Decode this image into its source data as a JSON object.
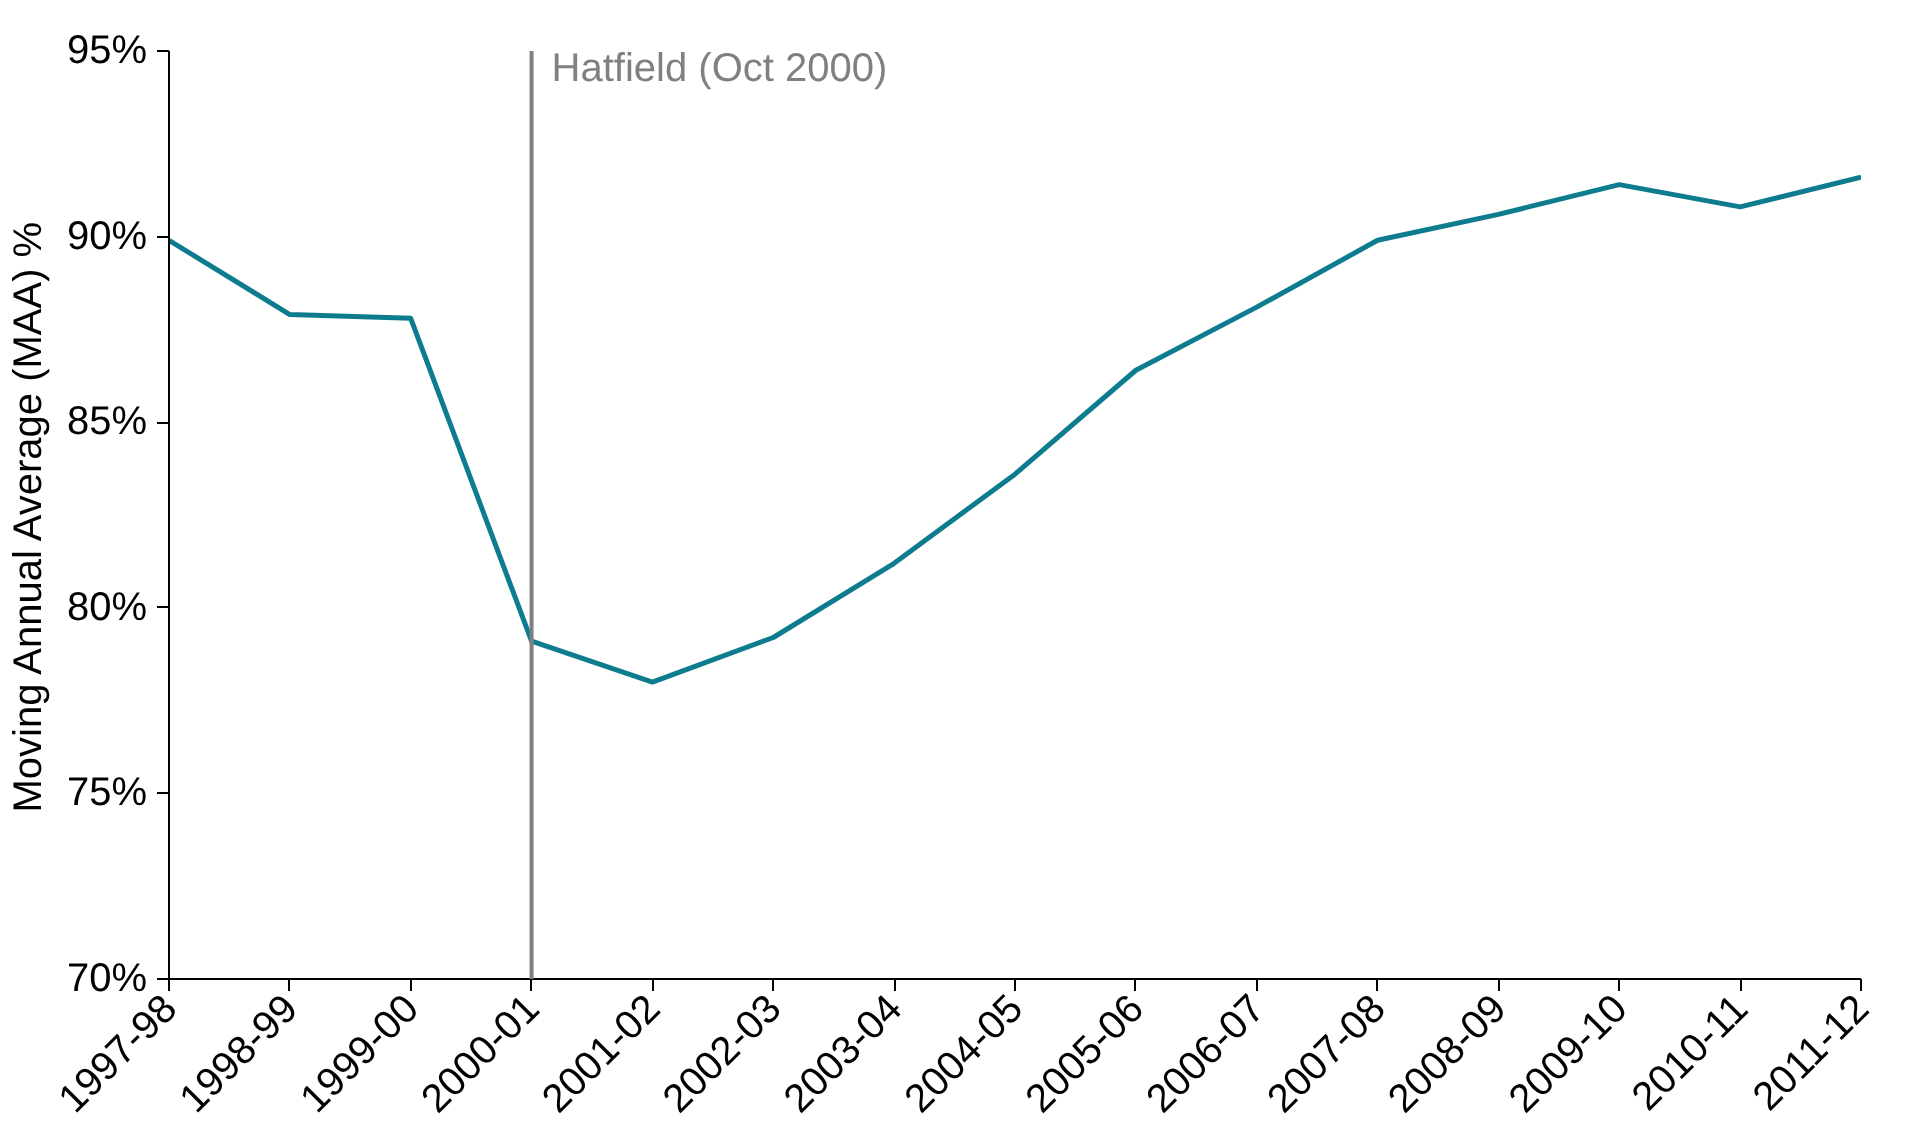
{
  "chart_data": {
    "type": "line",
    "ylabel": "Moving Annual Average (MAA) %",
    "categories": [
      "1997-98",
      "1998-99",
      "1999-00",
      "2000-01",
      "2001-02",
      "2002-03",
      "2003-04",
      "2004-05",
      "2005-06",
      "2006-07",
      "2007-08",
      "2008-09",
      "2009-10",
      "2010-11",
      "2011-12"
    ],
    "series": [
      {
        "color": "#0e7c8f",
        "values": [
          89.9,
          87.9,
          87.8,
          79.1,
          78.0,
          79.2,
          81.2,
          83.6,
          86.4,
          88.1,
          89.9,
          90.6,
          91.4,
          90.8,
          91.6
        ]
      }
    ],
    "ylim": [
      70,
      95
    ],
    "yticks": [
      {
        "value": 70,
        "label": "70%"
      },
      {
        "value": 75,
        "label": "75%"
      },
      {
        "value": 80,
        "label": "80%"
      },
      {
        "value": 85,
        "label": "85%"
      },
      {
        "value": 90,
        "label": "90%"
      },
      {
        "value": 95,
        "label": "95%"
      }
    ],
    "ref_lines": [
      {
        "axis": "x",
        "value": "2000-01",
        "label": "Hatfield (Oct 2000)",
        "color": "#808080"
      }
    ],
    "grid": false,
    "marker": "none",
    "line_style": "solid"
  }
}
